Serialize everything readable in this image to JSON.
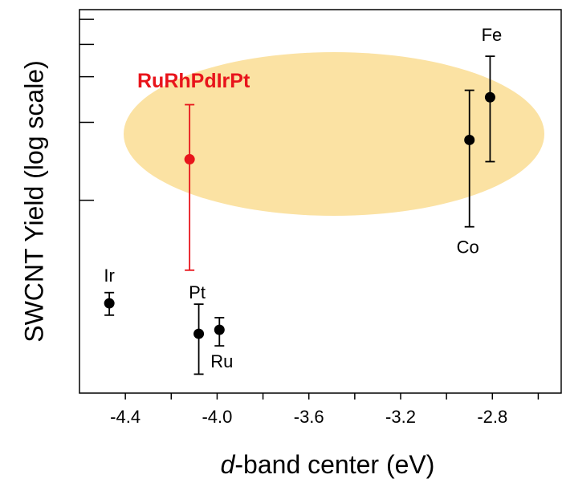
{
  "chart_data": {
    "type": "errorbar-scatter",
    "x_label": "d-band center (eV)",
    "y_label": "SWCNT Yield (log scale)",
    "log_y": true,
    "xlim": [
      -4.6,
      -2.5
    ],
    "xticks": [
      -4.4,
      {
        "value": -4.0,
        "label": "-4.0"
      },
      -3.6,
      -3.2,
      -2.8
    ],
    "xminor_ticks": [
      -4.2,
      -3.8,
      -3.4,
      -3.0,
      -2.6
    ],
    "ylim": [
      0.18,
      5.45
    ],
    "yticks": [
      1,
      2,
      3,
      4,
      5
    ],
    "series": [
      {
        "name": "Ir",
        "color": "#000000",
        "x": -4.47,
        "y": 0.4,
        "low": 0.36,
        "high": 0.44
      },
      {
        "name": "Pt",
        "color": "#000000",
        "x": -4.08,
        "y": 0.305,
        "low": 0.213,
        "high": 0.397
      },
      {
        "name": "Ru",
        "color": "#000000",
        "x": -3.99,
        "y": 0.316,
        "low": 0.274,
        "high": 0.352
      },
      {
        "name": "RuRhPdIrPt",
        "color": "#e8141b",
        "x": -4.12,
        "y": 1.44,
        "low": 0.537,
        "high": 2.34
      },
      {
        "name": "Co",
        "color": "#000000",
        "x": -2.9,
        "y": 1.71,
        "low": 0.79,
        "high": 2.66
      },
      {
        "name": "Fe",
        "color": "#000000",
        "x": -2.81,
        "y": 2.5,
        "low": 1.41,
        "high": 3.6
      }
    ]
  }
}
